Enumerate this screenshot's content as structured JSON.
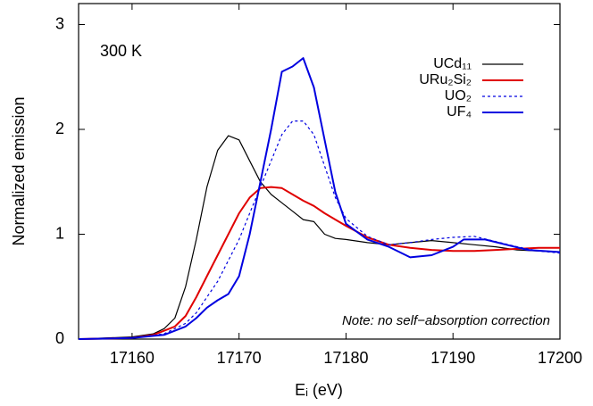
{
  "chart_data": {
    "type": "line",
    "xlabel": "Eᵢ (eV)",
    "ylabel": "Normalized emission",
    "annotations": [
      "300 K",
      "Note: no self−absorption correction"
    ],
    "xlim": [
      17155,
      17200
    ],
    "xticks": [
      17160,
      17170,
      17180,
      17190,
      17200
    ],
    "ylim": [
      0,
      3.2
    ],
    "yticks": [
      0,
      1,
      2,
      3
    ],
    "legend": "upper-right",
    "series": [
      {
        "name": "UCd₁₁",
        "color": "#000000",
        "width": 1.2,
        "x": [
          17155,
          17160,
          17162,
          17163,
          17164,
          17165,
          17166,
          17167,
          17168,
          17169,
          17170,
          17171,
          17172,
          17173,
          17174,
          17175,
          17176,
          17177,
          17178,
          17179,
          17180,
          17182,
          17184,
          17186,
          17188,
          17190,
          17192,
          17194,
          17196,
          17198,
          17200
        ],
        "values": [
          0,
          0.02,
          0.05,
          0.1,
          0.2,
          0.5,
          0.95,
          1.45,
          1.8,
          1.94,
          1.9,
          1.7,
          1.5,
          1.38,
          1.3,
          1.22,
          1.14,
          1.12,
          1.0,
          0.96,
          0.95,
          0.92,
          0.9,
          0.92,
          0.94,
          0.92,
          0.9,
          0.88,
          0.85,
          0.84,
          0.83
        ]
      },
      {
        "name": "URu₂Si₂",
        "color": "#e00000",
        "width": 2,
        "x": [
          17155,
          17160,
          17162,
          17164,
          17165,
          17166,
          17167,
          17168,
          17169,
          17170,
          17171,
          17172,
          17173,
          17174,
          17175,
          17176,
          17177,
          17178,
          17180,
          17182,
          17184,
          17186,
          17188,
          17190,
          17192,
          17194,
          17196,
          17198,
          17200
        ],
        "values": [
          0,
          0.01,
          0.04,
          0.12,
          0.22,
          0.4,
          0.6,
          0.8,
          1.0,
          1.2,
          1.35,
          1.44,
          1.45,
          1.44,
          1.38,
          1.32,
          1.27,
          1.2,
          1.08,
          0.97,
          0.9,
          0.87,
          0.85,
          0.84,
          0.84,
          0.85,
          0.86,
          0.87,
          0.87
        ]
      },
      {
        "name": "UO₂",
        "color": "#0000e0",
        "width": 1.2,
        "dashed": true,
        "x": [
          17155,
          17160,
          17163,
          17165,
          17166,
          17167,
          17168,
          17169,
          17170,
          17171,
          17172,
          17173,
          17174,
          17175,
          17176,
          17177,
          17178,
          17179,
          17180,
          17182,
          17184,
          17186,
          17188,
          17190,
          17192,
          17194,
          17196,
          17198,
          17200
        ],
        "values": [
          0,
          0.01,
          0.05,
          0.15,
          0.25,
          0.4,
          0.55,
          0.75,
          0.95,
          1.2,
          1.45,
          1.7,
          1.95,
          2.08,
          2.08,
          1.95,
          1.65,
          1.35,
          1.15,
          0.98,
          0.9,
          0.92,
          0.95,
          0.97,
          0.98,
          0.93,
          0.88,
          0.84,
          0.82
        ]
      },
      {
        "name": "UF₄",
        "color": "#0000e0",
        "width": 2,
        "x": [
          17155,
          17160,
          17163,
          17165,
          17166,
          17167,
          17168,
          17169,
          17170,
          17171,
          17172,
          17173,
          17174,
          17175,
          17176,
          17177,
          17178,
          17179,
          17180,
          17182,
          17184,
          17186,
          17188,
          17190,
          17191,
          17193,
          17195,
          17197,
          17200
        ],
        "values": [
          0,
          0.01,
          0.04,
          0.12,
          0.2,
          0.3,
          0.37,
          0.43,
          0.6,
          1.0,
          1.5,
          2.0,
          2.55,
          2.6,
          2.68,
          2.4,
          1.9,
          1.4,
          1.1,
          0.95,
          0.88,
          0.78,
          0.8,
          0.88,
          0.95,
          0.95,
          0.9,
          0.85,
          0.83
        ]
      }
    ]
  }
}
